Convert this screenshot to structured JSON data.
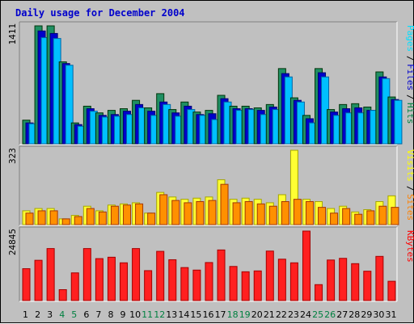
{
  "title": "Daily usage for December 2004",
  "chart_data": [
    {
      "type": "bar",
      "panel": "pages-files-hits",
      "y_max_label": "1411",
      "ylim": [
        0,
        1411
      ],
      "categories": [
        "1",
        "2",
        "3",
        "4",
        "5",
        "6",
        "7",
        "8",
        "9",
        "10",
        "11",
        "12",
        "13",
        "14",
        "15",
        "16",
        "17",
        "18",
        "19",
        "20",
        "21",
        "22",
        "23",
        "24",
        "25",
        "26",
        "27",
        "28",
        "29",
        "30",
        "31"
      ],
      "legend": [
        {
          "label": "Pages",
          "color": "#00e0ff"
        },
        {
          "label": "Files",
          "color": "#0000cc"
        },
        {
          "label": "Hits",
          "color": "#008040"
        }
      ],
      "series": [
        {
          "name": "Hits",
          "color": "#1f8f63",
          "values": [
            283,
            1411,
            1411,
            980,
            250,
            450,
            370,
            400,
            420,
            520,
            430,
            600,
            410,
            500,
            380,
            400,
            580,
            450,
            450,
            430,
            470,
            900,
            550,
            340,
            900,
            410,
            470,
            480,
            440,
            860,
            560
          ]
        },
        {
          "name": "Files",
          "color": "#0000cc",
          "values": [
            250,
            1350,
            1320,
            960,
            230,
            420,
            340,
            350,
            390,
            470,
            390,
            500,
            370,
            450,
            350,
            360,
            540,
            420,
            420,
            400,
            440,
            840,
            520,
            300,
            850,
            380,
            420,
            430,
            400,
            800,
            530
          ]
        },
        {
          "name": "Pages",
          "color": "#00c0ff",
          "values": [
            240,
            1270,
            1260,
            940,
            210,
            390,
            320,
            330,
            350,
            430,
            340,
            470,
            330,
            410,
            340,
            290,
            500,
            400,
            410,
            350,
            410,
            800,
            500,
            250,
            800,
            340,
            370,
            370,
            400,
            780,
            520
          ]
        }
      ]
    },
    {
      "type": "bar",
      "panel": "visits-sites",
      "y_max_label": "323",
      "ylim": [
        0,
        323
      ],
      "legend": [
        {
          "label": "Visits",
          "color": "#ffff00"
        },
        {
          "label": "Sites",
          "color": "#ff8000"
        }
      ],
      "series": [
        {
          "name": "Visits",
          "color": "#ffff33",
          "values": [
            60,
            70,
            70,
            25,
            40,
            80,
            60,
            85,
            90,
            95,
            50,
            140,
            120,
            110,
            115,
            120,
            195,
            110,
            115,
            110,
            95,
            130,
            323,
            110,
            100,
            70,
            80,
            55,
            65,
            100,
            125
          ]
        },
        {
          "name": "Sites",
          "color": "#ff9000",
          "values": [
            50,
            60,
            60,
            25,
            35,
            70,
            55,
            80,
            85,
            90,
            50,
            130,
            105,
            95,
            100,
            105,
            175,
            95,
            100,
            90,
            80,
            100,
            110,
            100,
            75,
            50,
            70,
            45,
            60,
            80,
            75
          ]
        }
      ]
    },
    {
      "type": "bar",
      "panel": "kbytes",
      "y_max_label": "24845",
      "ylim": [
        0,
        24845
      ],
      "legend": [
        {
          "label": "KBytes",
          "color": "#ff0000"
        }
      ],
      "series": [
        {
          "name": "KBytes",
          "color": "#ff2020",
          "values": [
            11400,
            14400,
            18600,
            3900,
            9900,
            18600,
            15000,
            15500,
            13500,
            18600,
            10700,
            17600,
            14600,
            11800,
            10900,
            13600,
            18100,
            12200,
            10300,
            10600,
            17700,
            14800,
            13500,
            24845,
            5700,
            14500,
            15100,
            13200,
            10500,
            15800,
            6900
          ]
        }
      ]
    }
  ],
  "x_labels": {
    "weekend_color": "#008040",
    "weekday_color": "#000000",
    "weekend_days": [
      "4",
      "5",
      "11",
      "12",
      "18",
      "19",
      "25",
      "26"
    ]
  }
}
